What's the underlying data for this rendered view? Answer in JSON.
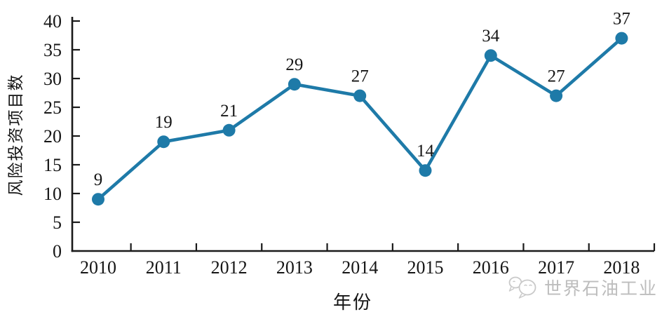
{
  "chart_data": {
    "type": "line",
    "title": "",
    "categories": [
      "2010",
      "2011",
      "2012",
      "2013",
      "2014",
      "2015",
      "2016",
      "2017",
      "2018"
    ],
    "series": [
      {
        "name": "风险投资项目数",
        "values": [
          9,
          19,
          21,
          29,
          27,
          14,
          34,
          27,
          37
        ]
      }
    ],
    "xlabel": "年份",
    "ylabel": "风险投资项目数",
    "ylim": [
      0,
      40
    ],
    "yticks": [
      0,
      5,
      10,
      15,
      20,
      25,
      30,
      35,
      40
    ],
    "grid": false,
    "legend_position": "none",
    "show_value_labels": true,
    "line_color": "#1e7aa8",
    "marker_color": "#1e7aa8",
    "marker": "circle",
    "axis_color": "#1a1a1a"
  },
  "watermark": {
    "text": "世界石油工业",
    "icon": "wechat-logo",
    "color": "#bdbdbd"
  }
}
